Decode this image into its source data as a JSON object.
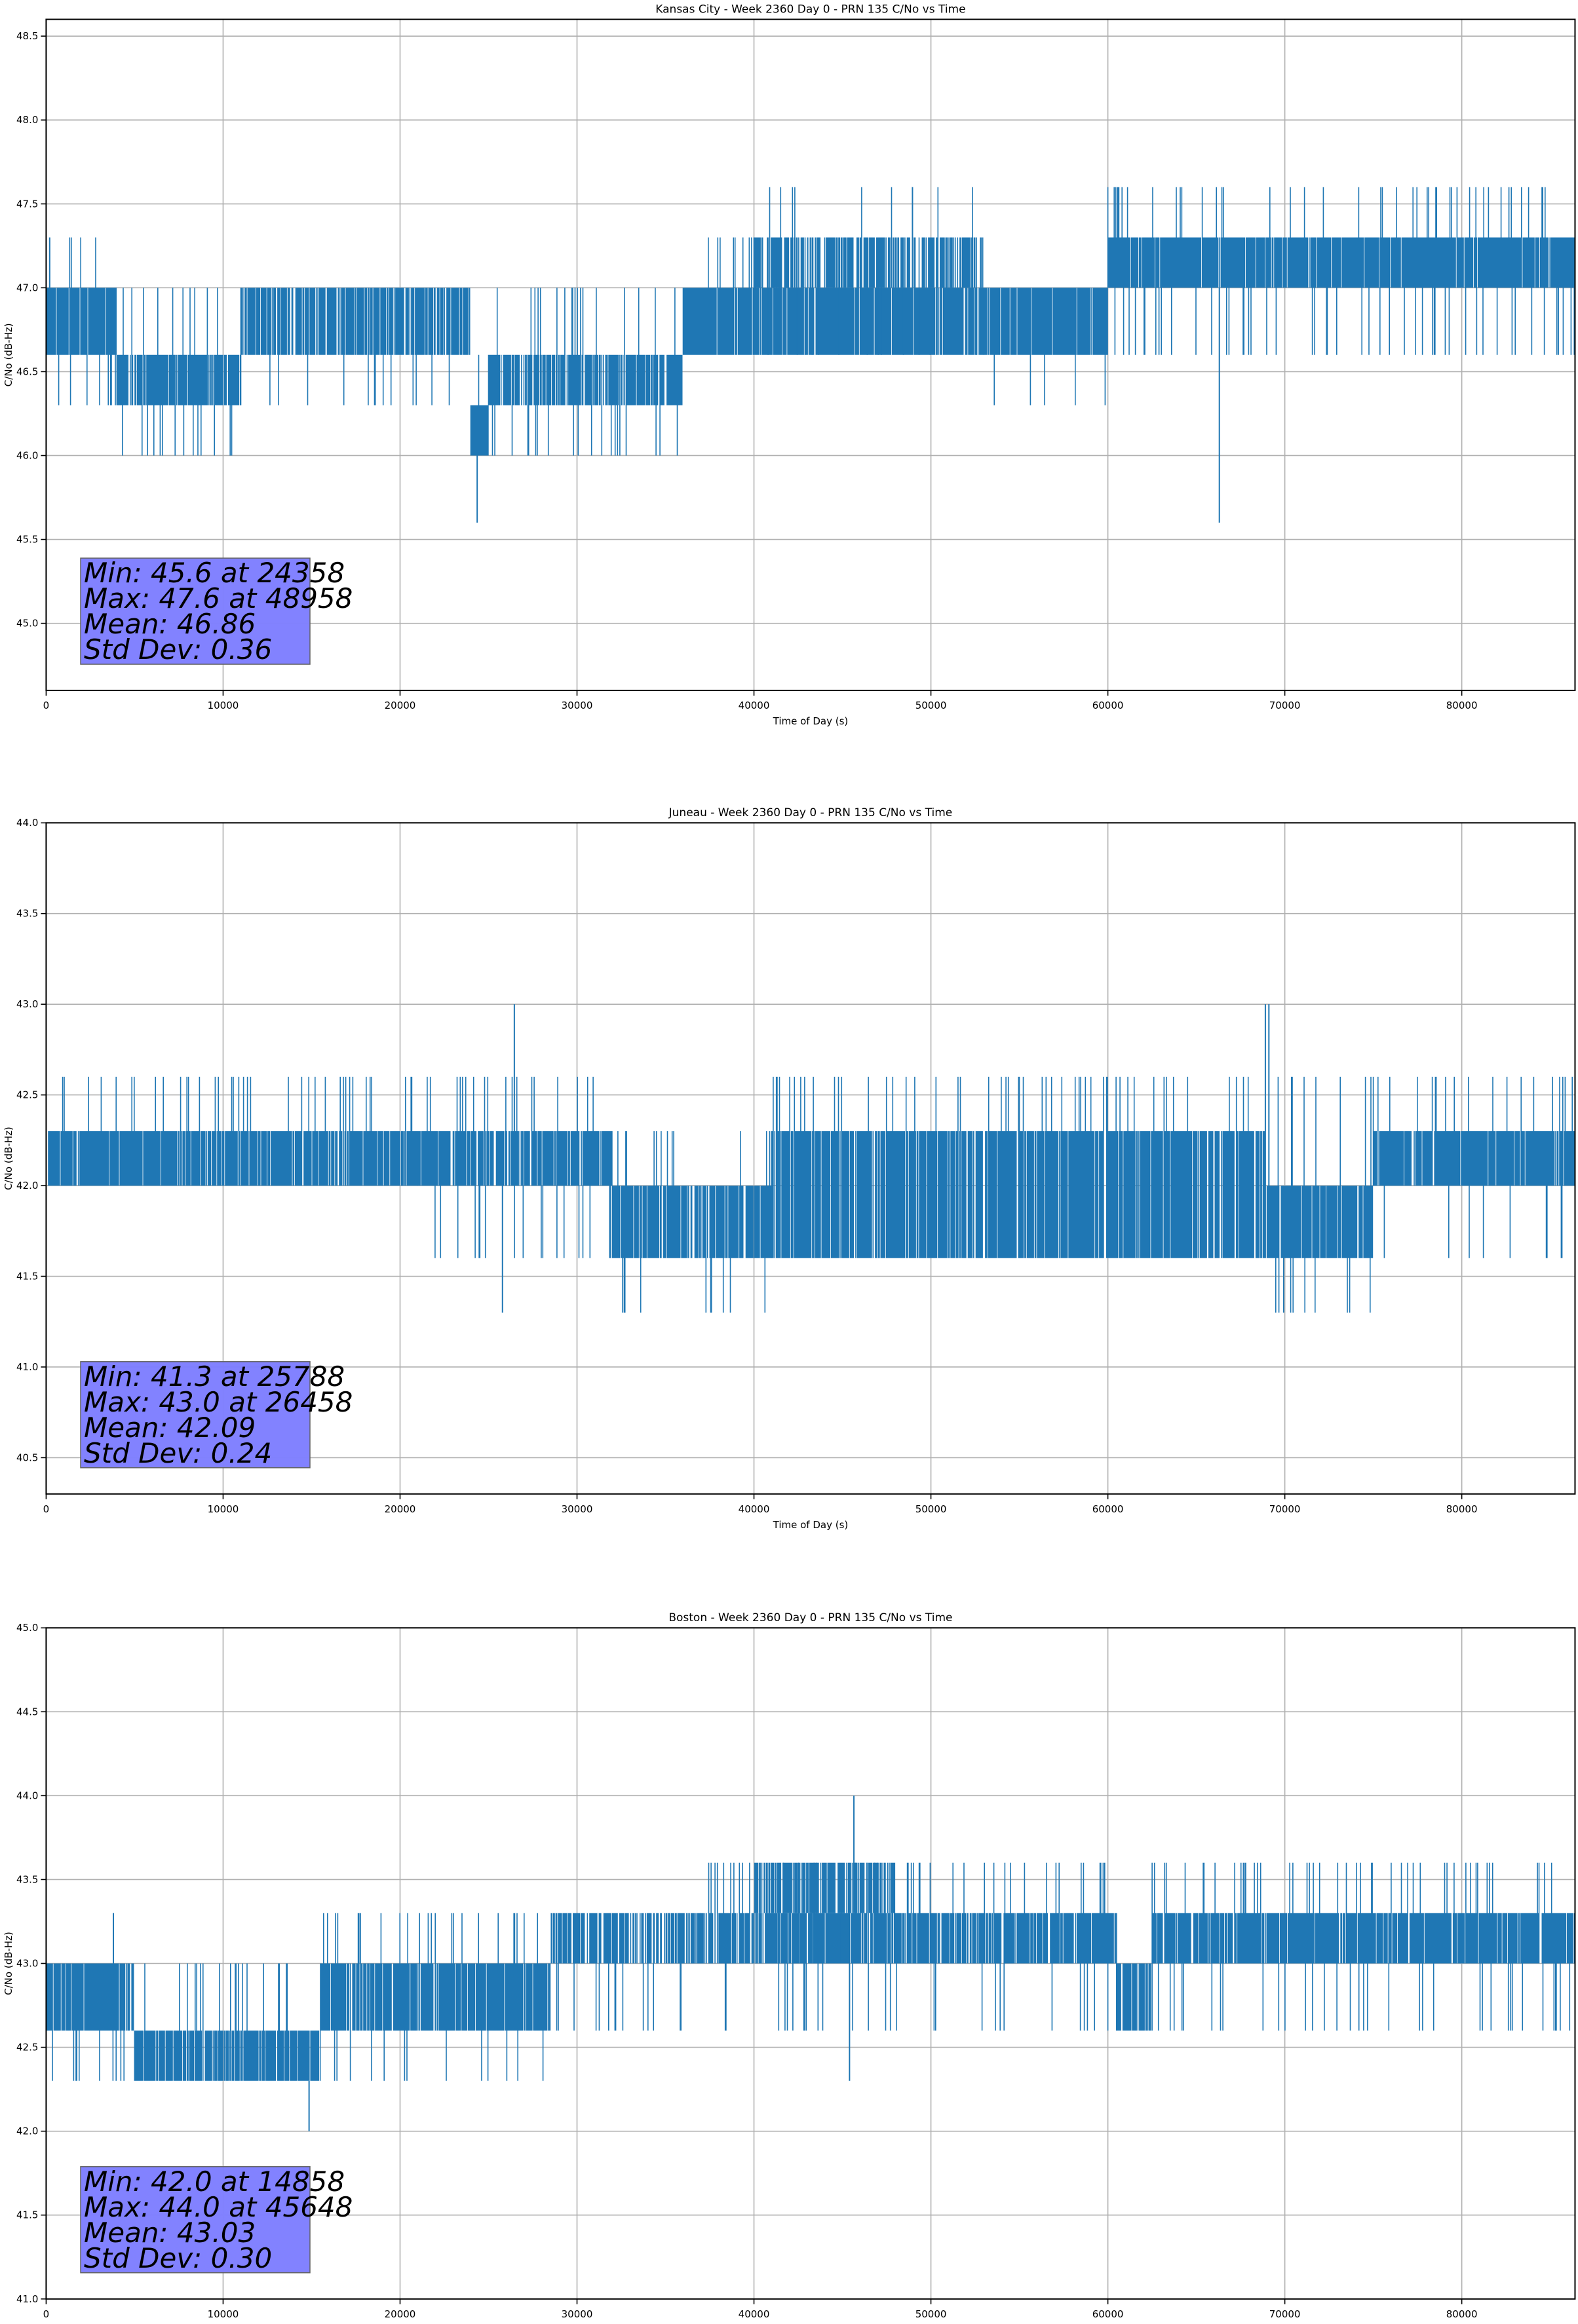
{
  "chart_data": [
    {
      "type": "line",
      "title": "Kansas City - Week 2360 Day 0 - PRN 135 C/No vs Time",
      "xlabel": "Time of Day (s)",
      "ylabel": "C/No (dB-Hz)",
      "xlim": [
        0,
        86400
      ],
      "ylim": [
        44.6,
        48.6
      ],
      "xticks": [
        0,
        10000,
        20000,
        30000,
        40000,
        50000,
        60000,
        70000,
        80000
      ],
      "xtick_labels": [
        "0",
        "10000",
        "20000",
        "30000",
        "40000",
        "50000",
        "60000",
        "70000",
        "80000"
      ],
      "yticks": [
        45.0,
        45.5,
        46.0,
        46.5,
        47.0,
        47.5,
        48.0,
        48.5
      ],
      "ytick_labels": [
        "45.0",
        "45.5",
        "46.0",
        "46.5",
        "47.0",
        "47.5",
        "48.0",
        "48.5"
      ],
      "grid": true,
      "line_color": "#1f77b4",
      "series": [
        {
          "name": "PRN 135 C/No",
          "segments": [
            {
              "x": [
                0,
                4000
              ],
              "band": [
                46.6,
                47.0
              ],
              "up": 47.3,
              "down": 46.3,
              "density": 0.9
            },
            {
              "x": [
                4000,
                11000
              ],
              "band": [
                46.3,
                46.6
              ],
              "up": 47.0,
              "down": 46.0,
              "density": 0.85
            },
            {
              "x": [
                11000,
                24000
              ],
              "band": [
                46.6,
                47.0
              ],
              "up": 47.0,
              "down": 46.3,
              "density": 0.8
            },
            {
              "x": [
                24000,
                25000
              ],
              "band": [
                46.0,
                46.3
              ],
              "up": 46.6,
              "down": 46.0,
              "density": 1.0
            },
            {
              "x": [
                25000,
                36000
              ],
              "band": [
                46.3,
                46.6
              ],
              "up": 47.0,
              "down": 46.0,
              "density": 0.8
            },
            {
              "x": [
                36000,
                53000
              ],
              "band": [
                46.6,
                47.0
              ],
              "up": 47.3,
              "down": 46.6,
              "density": 0.9
            },
            {
              "x": [
                40000,
                53000
              ],
              "band": [
                47.0,
                47.3
              ],
              "up": 47.6,
              "down": 46.6,
              "density": 0.7
            },
            {
              "x": [
                53000,
                60000
              ],
              "band": [
                46.6,
                47.0
              ],
              "up": 47.0,
              "down": 46.3,
              "density": 0.95
            },
            {
              "x": [
                60000,
                86400
              ],
              "band": [
                47.0,
                47.3
              ],
              "up": 47.6,
              "down": 46.6,
              "density": 0.95
            }
          ],
          "points": [
            {
              "x": 24358,
              "y": 45.6
            },
            {
              "x": 48958,
              "y": 47.6
            },
            {
              "x": 66300,
              "y": 45.6
            },
            {
              "x": 200,
              "y": 47.3
            }
          ]
        }
      ],
      "annotation": {
        "placement": "lower-left",
        "lines": [
          "Min: 45.6 at 24358",
          "Max: 47.6 at 48958",
          "Mean: 46.86",
          "Std Dev: 0.36"
        ],
        "box_color": "#8080ff"
      },
      "stats": {
        "min": 45.6,
        "min_time": 24358,
        "max": 47.6,
        "max_time": 48958,
        "mean": 46.86,
        "std_dev": 0.36
      }
    },
    {
      "type": "line",
      "title": "Juneau - Week 2360 Day 0 - PRN 135 C/No vs Time",
      "xlabel": "Time of Day (s)",
      "ylabel": "C/No (dB-Hz)",
      "xlim": [
        0,
        86400
      ],
      "ylim": [
        40.3,
        44.0
      ],
      "xticks": [
        0,
        10000,
        20000,
        30000,
        40000,
        50000,
        60000,
        70000,
        80000
      ],
      "xtick_labels": [
        "0",
        "10000",
        "20000",
        "30000",
        "40000",
        "50000",
        "60000",
        "70000",
        "80000"
      ],
      "yticks": [
        40.5,
        41.0,
        41.5,
        42.0,
        42.5,
        43.0,
        43.5,
        44.0
      ],
      "ytick_labels": [
        "40.5",
        "41.0",
        "41.5",
        "42.0",
        "42.5",
        "43.0",
        "43.5",
        "44.0"
      ],
      "grid": true,
      "line_color": "#1f77b4",
      "series": [
        {
          "name": "PRN 135 C/No",
          "segments": [
            {
              "x": [
                0,
                21000
              ],
              "band": [
                42.0,
                42.3
              ],
              "up": 42.6,
              "down": 42.0,
              "density": 0.9
            },
            {
              "x": [
                21000,
                32000
              ],
              "band": [
                42.0,
                42.3
              ],
              "up": 42.6,
              "down": 41.6,
              "density": 0.85
            },
            {
              "x": [
                32000,
                41000
              ],
              "band": [
                41.6,
                42.0
              ],
              "up": 42.3,
              "down": 41.3,
              "density": 0.85
            },
            {
              "x": [
                41000,
                69000
              ],
              "band": [
                41.6,
                42.3
              ],
              "up": 42.6,
              "down": 41.6,
              "density": 0.85
            },
            {
              "x": [
                69000,
                75000
              ],
              "band": [
                41.6,
                42.0
              ],
              "up": 42.6,
              "down": 41.3,
              "density": 0.9
            },
            {
              "x": [
                75000,
                86400
              ],
              "band": [
                42.0,
                42.3
              ],
              "up": 42.6,
              "down": 41.6,
              "density": 0.9
            }
          ],
          "points": [
            {
              "x": 25788,
              "y": 41.3
            },
            {
              "x": 26458,
              "y": 43.0
            },
            {
              "x": 68900,
              "y": 43.0
            },
            {
              "x": 69100,
              "y": 43.0
            }
          ]
        }
      ],
      "annotation": {
        "placement": "lower-left",
        "lines": [
          "Min: 41.3 at 25788",
          "Max: 43.0 at 26458",
          "Mean: 42.09",
          "Std Dev: 0.24"
        ],
        "box_color": "#8080ff"
      },
      "stats": {
        "min": 41.3,
        "min_time": 25788,
        "max": 43.0,
        "max_time": 26458,
        "mean": 42.09,
        "std_dev": 0.24
      }
    },
    {
      "type": "line",
      "title": "Boston - Week 2360 Day 0 - PRN 135 C/No vs Time",
      "xlabel": "Time of Day (s)",
      "ylabel": "C/No (dB-Hz)",
      "xlim": [
        0,
        86400
      ],
      "ylim": [
        41.0,
        45.0
      ],
      "xticks": [
        0,
        10000,
        20000,
        30000,
        40000,
        50000,
        60000,
        70000,
        80000
      ],
      "xtick_labels": [
        "0",
        "10000",
        "20000",
        "30000",
        "40000",
        "50000",
        "60000",
        "70000",
        "80000"
      ],
      "yticks": [
        41.0,
        41.5,
        42.0,
        42.5,
        43.0,
        43.5,
        44.0,
        44.5,
        45.0
      ],
      "ytick_labels": [
        "41.0",
        "41.5",
        "42.0",
        "42.5",
        "43.0",
        "43.5",
        "44.0",
        "44.5",
        "45.0"
      ],
      "grid": true,
      "line_color": "#1f77b4",
      "series": [
        {
          "name": "PRN 135 C/No",
          "segments": [
            {
              "x": [
                0,
                5000
              ],
              "band": [
                42.6,
                43.0
              ],
              "up": 43.0,
              "down": 42.3,
              "density": 0.9
            },
            {
              "x": [
                5000,
                15500
              ],
              "band": [
                42.3,
                42.6
              ],
              "up": 43.0,
              "down": 42.3,
              "density": 0.85
            },
            {
              "x": [
                15500,
                28500
              ],
              "band": [
                42.6,
                43.0
              ],
              "up": 43.3,
              "down": 42.3,
              "density": 0.9
            },
            {
              "x": [
                28500,
                37000
              ],
              "band": [
                43.0,
                43.3
              ],
              "up": 43.3,
              "down": 42.6,
              "density": 0.7
            },
            {
              "x": [
                37000,
                48000
              ],
              "band": [
                43.0,
                43.3
              ],
              "up": 43.6,
              "down": 42.6,
              "density": 0.85
            },
            {
              "x": [
                40000,
                48000
              ],
              "band": [
                43.3,
                43.6
              ],
              "up": 43.6,
              "down": 43.0,
              "density": 0.7
            },
            {
              "x": [
                48000,
                60500
              ],
              "band": [
                43.0,
                43.3
              ],
              "up": 43.6,
              "down": 42.6,
              "density": 0.85
            },
            {
              "x": [
                60500,
                62500
              ],
              "band": [
                42.6,
                43.0
              ],
              "up": 43.0,
              "down": 42.6,
              "density": 0.9
            },
            {
              "x": [
                62500,
                86400
              ],
              "band": [
                43.0,
                43.3
              ],
              "up": 43.6,
              "down": 42.6,
              "density": 0.9
            }
          ],
          "points": [
            {
              "x": 14858,
              "y": 42.0
            },
            {
              "x": 45648,
              "y": 44.0
            },
            {
              "x": 45400,
              "y": 42.3
            },
            {
              "x": 3800,
              "y": 43.3
            }
          ]
        }
      ],
      "annotation": {
        "placement": "lower-left",
        "lines": [
          "Min: 42.0 at 14858",
          "Max: 44.0 at 45648",
          "Mean: 43.03",
          "Std Dev: 0.30"
        ],
        "box_color": "#8080ff"
      },
      "stats": {
        "min": 42.0,
        "min_time": 14858,
        "max": 44.0,
        "max_time": 45648,
        "mean": 43.03,
        "std_dev": 0.3
      }
    }
  ]
}
